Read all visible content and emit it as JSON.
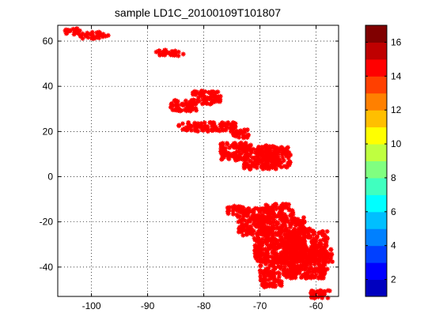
{
  "chart_data": {
    "type": "scatter",
    "title": "sample  LD1C_20100109T101807",
    "xlabel": "",
    "ylabel": "",
    "xlim": [
      -106,
      -56
    ],
    "ylim": [
      -53,
      67
    ],
    "xticks": [
      -100,
      -90,
      -80,
      -70,
      -60
    ],
    "yticks": [
      -40,
      -20,
      0,
      20,
      40,
      60
    ],
    "grid": true,
    "marker": "asterisk",
    "marker_color": "#ff0000",
    "colorbar": {
      "range": [
        1,
        17
      ],
      "ticks": [
        2,
        4,
        6,
        8,
        10,
        12,
        14,
        16
      ],
      "colors": [
        "#0000bf",
        "#0000ff",
        "#0040ff",
        "#0080ff",
        "#00bfff",
        "#00ffff",
        "#40ffbf",
        "#80ff80",
        "#bfff40",
        "#ffff00",
        "#ffbf00",
        "#ff8000",
        "#ff4000",
        "#ff0000",
        "#bf0000",
        "#800000"
      ]
    },
    "clusters": [
      {
        "x": [
          -105,
          -102
        ],
        "y": [
          63,
          66
        ]
      },
      {
        "x": [
          -102,
          -97
        ],
        "y": [
          61,
          64
        ]
      },
      {
        "x": [
          -88.5,
          -83.5
        ],
        "y": [
          53.5,
          56
        ]
      },
      {
        "x": [
          -86,
          -81
        ],
        "y": [
          29,
          34
        ]
      },
      {
        "x": [
          -82,
          -77
        ],
        "y": [
          32,
          38
        ]
      },
      {
        "x": [
          -84.5,
          -74
        ],
        "y": [
          20,
          24
        ]
      },
      {
        "x": [
          -75,
          -72
        ],
        "y": [
          17,
          21
        ]
      },
      {
        "x": [
          -77,
          -72
        ],
        "y": [
          7,
          15
        ]
      },
      {
        "x": [
          -73,
          -67
        ],
        "y": [
          3,
          14
        ]
      },
      {
        "x": [
          -69,
          -64.5
        ],
        "y": [
          4,
          13
        ]
      },
      {
        "x": [
          -76,
          -73
        ],
        "y": [
          -17,
          -13
        ]
      },
      {
        "x": [
          -74,
          -68
        ],
        "y": [
          -26,
          -14
        ]
      },
      {
        "x": [
          -69,
          -64
        ],
        "y": [
          -18,
          -12
        ]
      },
      {
        "x": [
          -71,
          -62
        ],
        "y": [
          -38,
          -18
        ]
      },
      {
        "x": [
          -70,
          -66
        ],
        "y": [
          -49,
          -36
        ]
      },
      {
        "x": [
          -66,
          -58
        ],
        "y": [
          -45,
          -23
        ]
      },
      {
        "x": [
          -62,
          -57
        ],
        "y": [
          -38,
          -32
        ]
      },
      {
        "x": [
          -61,
          -57.5
        ],
        "y": [
          -54,
          -50
        ]
      }
    ]
  }
}
